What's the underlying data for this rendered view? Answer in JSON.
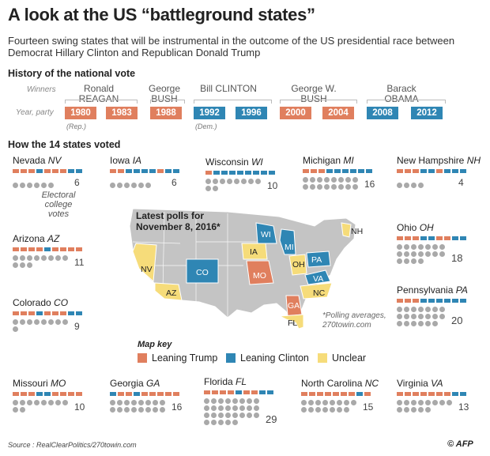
{
  "title": "A look at the US “battleground states”",
  "subtitle": "Fourteen swing states that will be instrumental in the outcome of the US presidential race between Democrat Hillary Clinton and Republican Donald Trump",
  "history": {
    "heading": "History of the national vote",
    "winners_label": "Winners",
    "year_label": "Year, party",
    "rep_note": "(Rep.)",
    "dem_note": "(Dem.)",
    "presidents": [
      {
        "name": "Ronald REAGAN",
        "years": [
          {
            "year": "1980",
            "party": "R"
          },
          {
            "year": "1983",
            "party": "R"
          }
        ]
      },
      {
        "name": "George BUSH",
        "years": [
          {
            "year": "1988",
            "party": "R"
          }
        ]
      },
      {
        "name": "Bill CLINTON",
        "years": [
          {
            "year": "1992",
            "party": "D"
          },
          {
            "year": "1996",
            "party": "D"
          }
        ]
      },
      {
        "name": "George W. BUSH",
        "years": [
          {
            "year": "2000",
            "party": "R"
          },
          {
            "year": "2004",
            "party": "R"
          }
        ]
      },
      {
        "name": "Barack OBAMA",
        "years": [
          {
            "year": "2008",
            "party": "D"
          },
          {
            "year": "2012",
            "party": "D"
          }
        ]
      }
    ]
  },
  "states_heading": "How the 14 states voted",
  "electoral_label": "Electoral college votes",
  "states": [
    {
      "name": "Nevada",
      "abbr": "NV",
      "votes": 6,
      "history": "RRRDRRRDD"
    },
    {
      "name": "Iowa",
      "abbr": "IA",
      "votes": 6,
      "history": "RRDDDDRDD"
    },
    {
      "name": "Wisconsin",
      "abbr": "WI",
      "votes": 10,
      "history": "RDDDDDDDD"
    },
    {
      "name": "Michigan",
      "abbr": "MI",
      "votes": 16,
      "history": "RRRDDDDDD"
    },
    {
      "name": "New Hampshire",
      "abbr": "NH",
      "votes": 4,
      "history": "RRRDDRDDD"
    },
    {
      "name": "Arizona",
      "abbr": "AZ",
      "votes": 11,
      "history": "RRRRDRRRR"
    },
    {
      "name": "Ohio",
      "abbr": "OH",
      "votes": 18,
      "history": "RRRDDRRDD"
    },
    {
      "name": "Colorado",
      "abbr": "CO",
      "votes": 9,
      "history": "RRRDRRRDD"
    },
    {
      "name": "Pennsylvania",
      "abbr": "PA",
      "votes": 20,
      "history": "RRRDDDDDD"
    },
    {
      "name": "Missouri",
      "abbr": "MO",
      "votes": 10,
      "history": "RRRDDRRRR"
    },
    {
      "name": "Georgia",
      "abbr": "GA",
      "votes": 16,
      "history": "DRRDRRRRR"
    },
    {
      "name": "Florida",
      "abbr": "FL",
      "votes": 29,
      "history": "RRRRDRRDD"
    },
    {
      "name": "North Carolina",
      "abbr": "NC",
      "votes": 15,
      "history": "RRRRRRRDR"
    },
    {
      "name": "Virginia",
      "abbr": "VA",
      "votes": 13,
      "history": "RRRRRRRDD"
    }
  ],
  "map": {
    "poll_title": "Latest polls for November 8, 2016*",
    "poll_note": "*Polling averages, 270towin.com",
    "labels": {
      "NV": "NV",
      "IA": "IA",
      "WI": "WI",
      "MI": "MI",
      "NH": "NH",
      "AZ": "AZ",
      "OH": "OH",
      "CO": "CO",
      "PA": "PA",
      "MO": "MO",
      "GA": "GA",
      "FL": "FL",
      "NC": "NC",
      "VA": "VA"
    }
  },
  "map_key": {
    "label": "Map key",
    "items": [
      {
        "label": "Leaning Trump",
        "color": "#e07f5e"
      },
      {
        "label": "Leaning Clinton",
        "color": "#2f86b4"
      },
      {
        "label": "Unclear",
        "color": "#f6dc7a"
      }
    ]
  },
  "colors": {
    "rep": "#e07f5e",
    "dem": "#2f86b4",
    "unclear": "#f6dc7a",
    "dot": "#a9a9a9",
    "land": "#c4c4c4"
  },
  "source": "Source : RealClearPolitics/270towin.com",
  "credit": "© AFP"
}
